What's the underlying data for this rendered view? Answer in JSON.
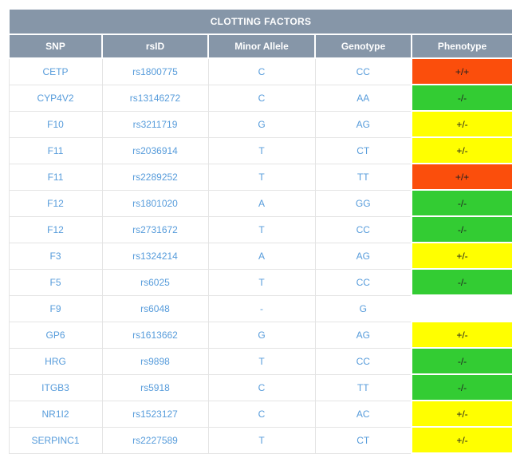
{
  "table": {
    "title": "CLOTTING FACTORS",
    "columns": [
      "SNP",
      "rsID",
      "Minor Allele",
      "Genotype",
      "Phenotype"
    ],
    "rows": [
      {
        "snp": "CETP",
        "rsid": "rs1800775",
        "minor_allele": "C",
        "genotype": "CC",
        "phenotype": "+/+",
        "phenotype_color": "red"
      },
      {
        "snp": "CYP4V2",
        "rsid": "rs13146272",
        "minor_allele": "C",
        "genotype": "AA",
        "phenotype": "-/-",
        "phenotype_color": "green"
      },
      {
        "snp": "F10",
        "rsid": "rs3211719",
        "minor_allele": "G",
        "genotype": "AG",
        "phenotype": "+/-",
        "phenotype_color": "yellow"
      },
      {
        "snp": "F11",
        "rsid": "rs2036914",
        "minor_allele": "T",
        "genotype": "CT",
        "phenotype": "+/-",
        "phenotype_color": "yellow"
      },
      {
        "snp": "F11",
        "rsid": "rs2289252",
        "minor_allele": "T",
        "genotype": "TT",
        "phenotype": "+/+",
        "phenotype_color": "red"
      },
      {
        "snp": "F12",
        "rsid": "rs1801020",
        "minor_allele": "A",
        "genotype": "GG",
        "phenotype": "-/-",
        "phenotype_color": "green"
      },
      {
        "snp": "F12",
        "rsid": "rs2731672",
        "minor_allele": "T",
        "genotype": "CC",
        "phenotype": "-/-",
        "phenotype_color": "green"
      },
      {
        "snp": "F3",
        "rsid": "rs1324214",
        "minor_allele": "A",
        "genotype": "AG",
        "phenotype": "+/-",
        "phenotype_color": "yellow"
      },
      {
        "snp": "F5",
        "rsid": "rs6025",
        "minor_allele": "T",
        "genotype": "CC",
        "phenotype": "-/-",
        "phenotype_color": "green"
      },
      {
        "snp": "F9",
        "rsid": "rs6048",
        "minor_allele": "-",
        "genotype": "G",
        "phenotype": "",
        "phenotype_color": "none"
      },
      {
        "snp": "GP6",
        "rsid": "rs1613662",
        "minor_allele": "G",
        "genotype": "AG",
        "phenotype": "+/-",
        "phenotype_color": "yellow"
      },
      {
        "snp": "HRG",
        "rsid": "rs9898",
        "minor_allele": "T",
        "genotype": "CC",
        "phenotype": "-/-",
        "phenotype_color": "green"
      },
      {
        "snp": "ITGB3",
        "rsid": "rs5918",
        "minor_allele": "C",
        "genotype": "TT",
        "phenotype": "-/-",
        "phenotype_color": "green"
      },
      {
        "snp": "NR1I2",
        "rsid": "rs1523127",
        "minor_allele": "C",
        "genotype": "AC",
        "phenotype": "+/-",
        "phenotype_color": "yellow"
      },
      {
        "snp": "SERPINC1",
        "rsid": "rs2227589",
        "minor_allele": "T",
        "genotype": "CT",
        "phenotype": "+/-",
        "phenotype_color": "yellow"
      }
    ]
  },
  "colors": {
    "header_bg": "#8696A8",
    "red": "#FB4E0C",
    "green": "#33CC33",
    "yellow": "#FFFF00",
    "none": "#FFFFFF",
    "data_text": "#579CDB",
    "phenotype_text": "#222222",
    "grid_border": "#E4E4E4"
  }
}
